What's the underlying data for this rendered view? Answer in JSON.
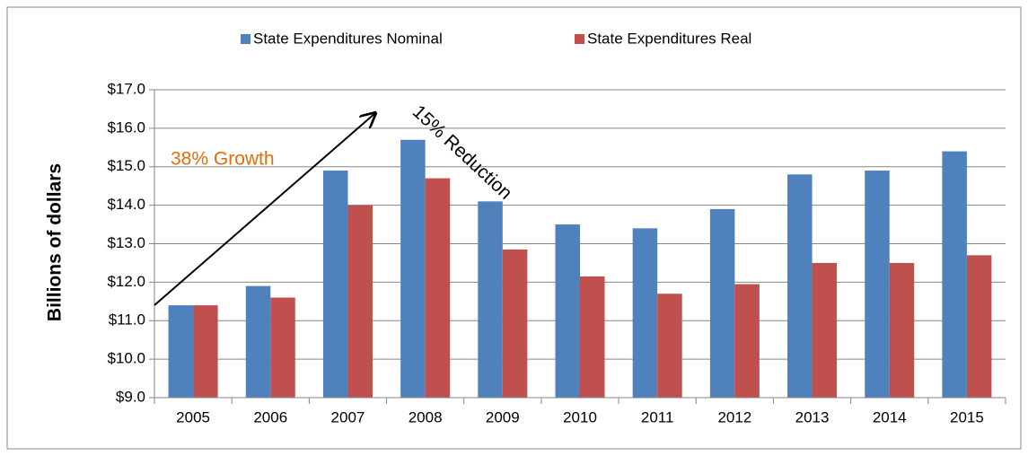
{
  "chart_data": {
    "type": "bar",
    "y_label": "Billions of dollars",
    "categories": [
      "2005",
      "2006",
      "2007",
      "2008",
      "2009",
      "2010",
      "2011",
      "2012",
      "2013",
      "2014",
      "2015"
    ],
    "series": [
      {
        "name": "State Expenditures Nominal",
        "color": "#4f81bd",
        "values": [
          11.4,
          11.9,
          14.9,
          15.7,
          14.1,
          13.5,
          13.4,
          13.9,
          14.8,
          14.9,
          15.4
        ]
      },
      {
        "name": "State Expenditures Real",
        "color": "#c0504d",
        "values": [
          11.4,
          11.6,
          14.0,
          14.7,
          12.85,
          12.15,
          11.7,
          11.95,
          12.5,
          12.5,
          12.7
        ]
      }
    ],
    "ylim": [
      9,
      17
    ],
    "yticks": [
      {
        "value": 9,
        "label": "$9.0"
      },
      {
        "value": 10,
        "label": "$10.0"
      },
      {
        "value": 11,
        "label": "$11.0"
      },
      {
        "value": 12,
        "label": "$12.0"
      },
      {
        "value": 13,
        "label": "$13.0"
      },
      {
        "value": 14,
        "label": "$14.0"
      },
      {
        "value": 15,
        "label": "$15.0"
      },
      {
        "value": 16,
        "label": "$16.0"
      },
      {
        "value": 17,
        "label": "$17.0"
      }
    ],
    "grid": true,
    "legend": "top",
    "annotations": [
      "38% Growth",
      "15% Reduction"
    ]
  }
}
